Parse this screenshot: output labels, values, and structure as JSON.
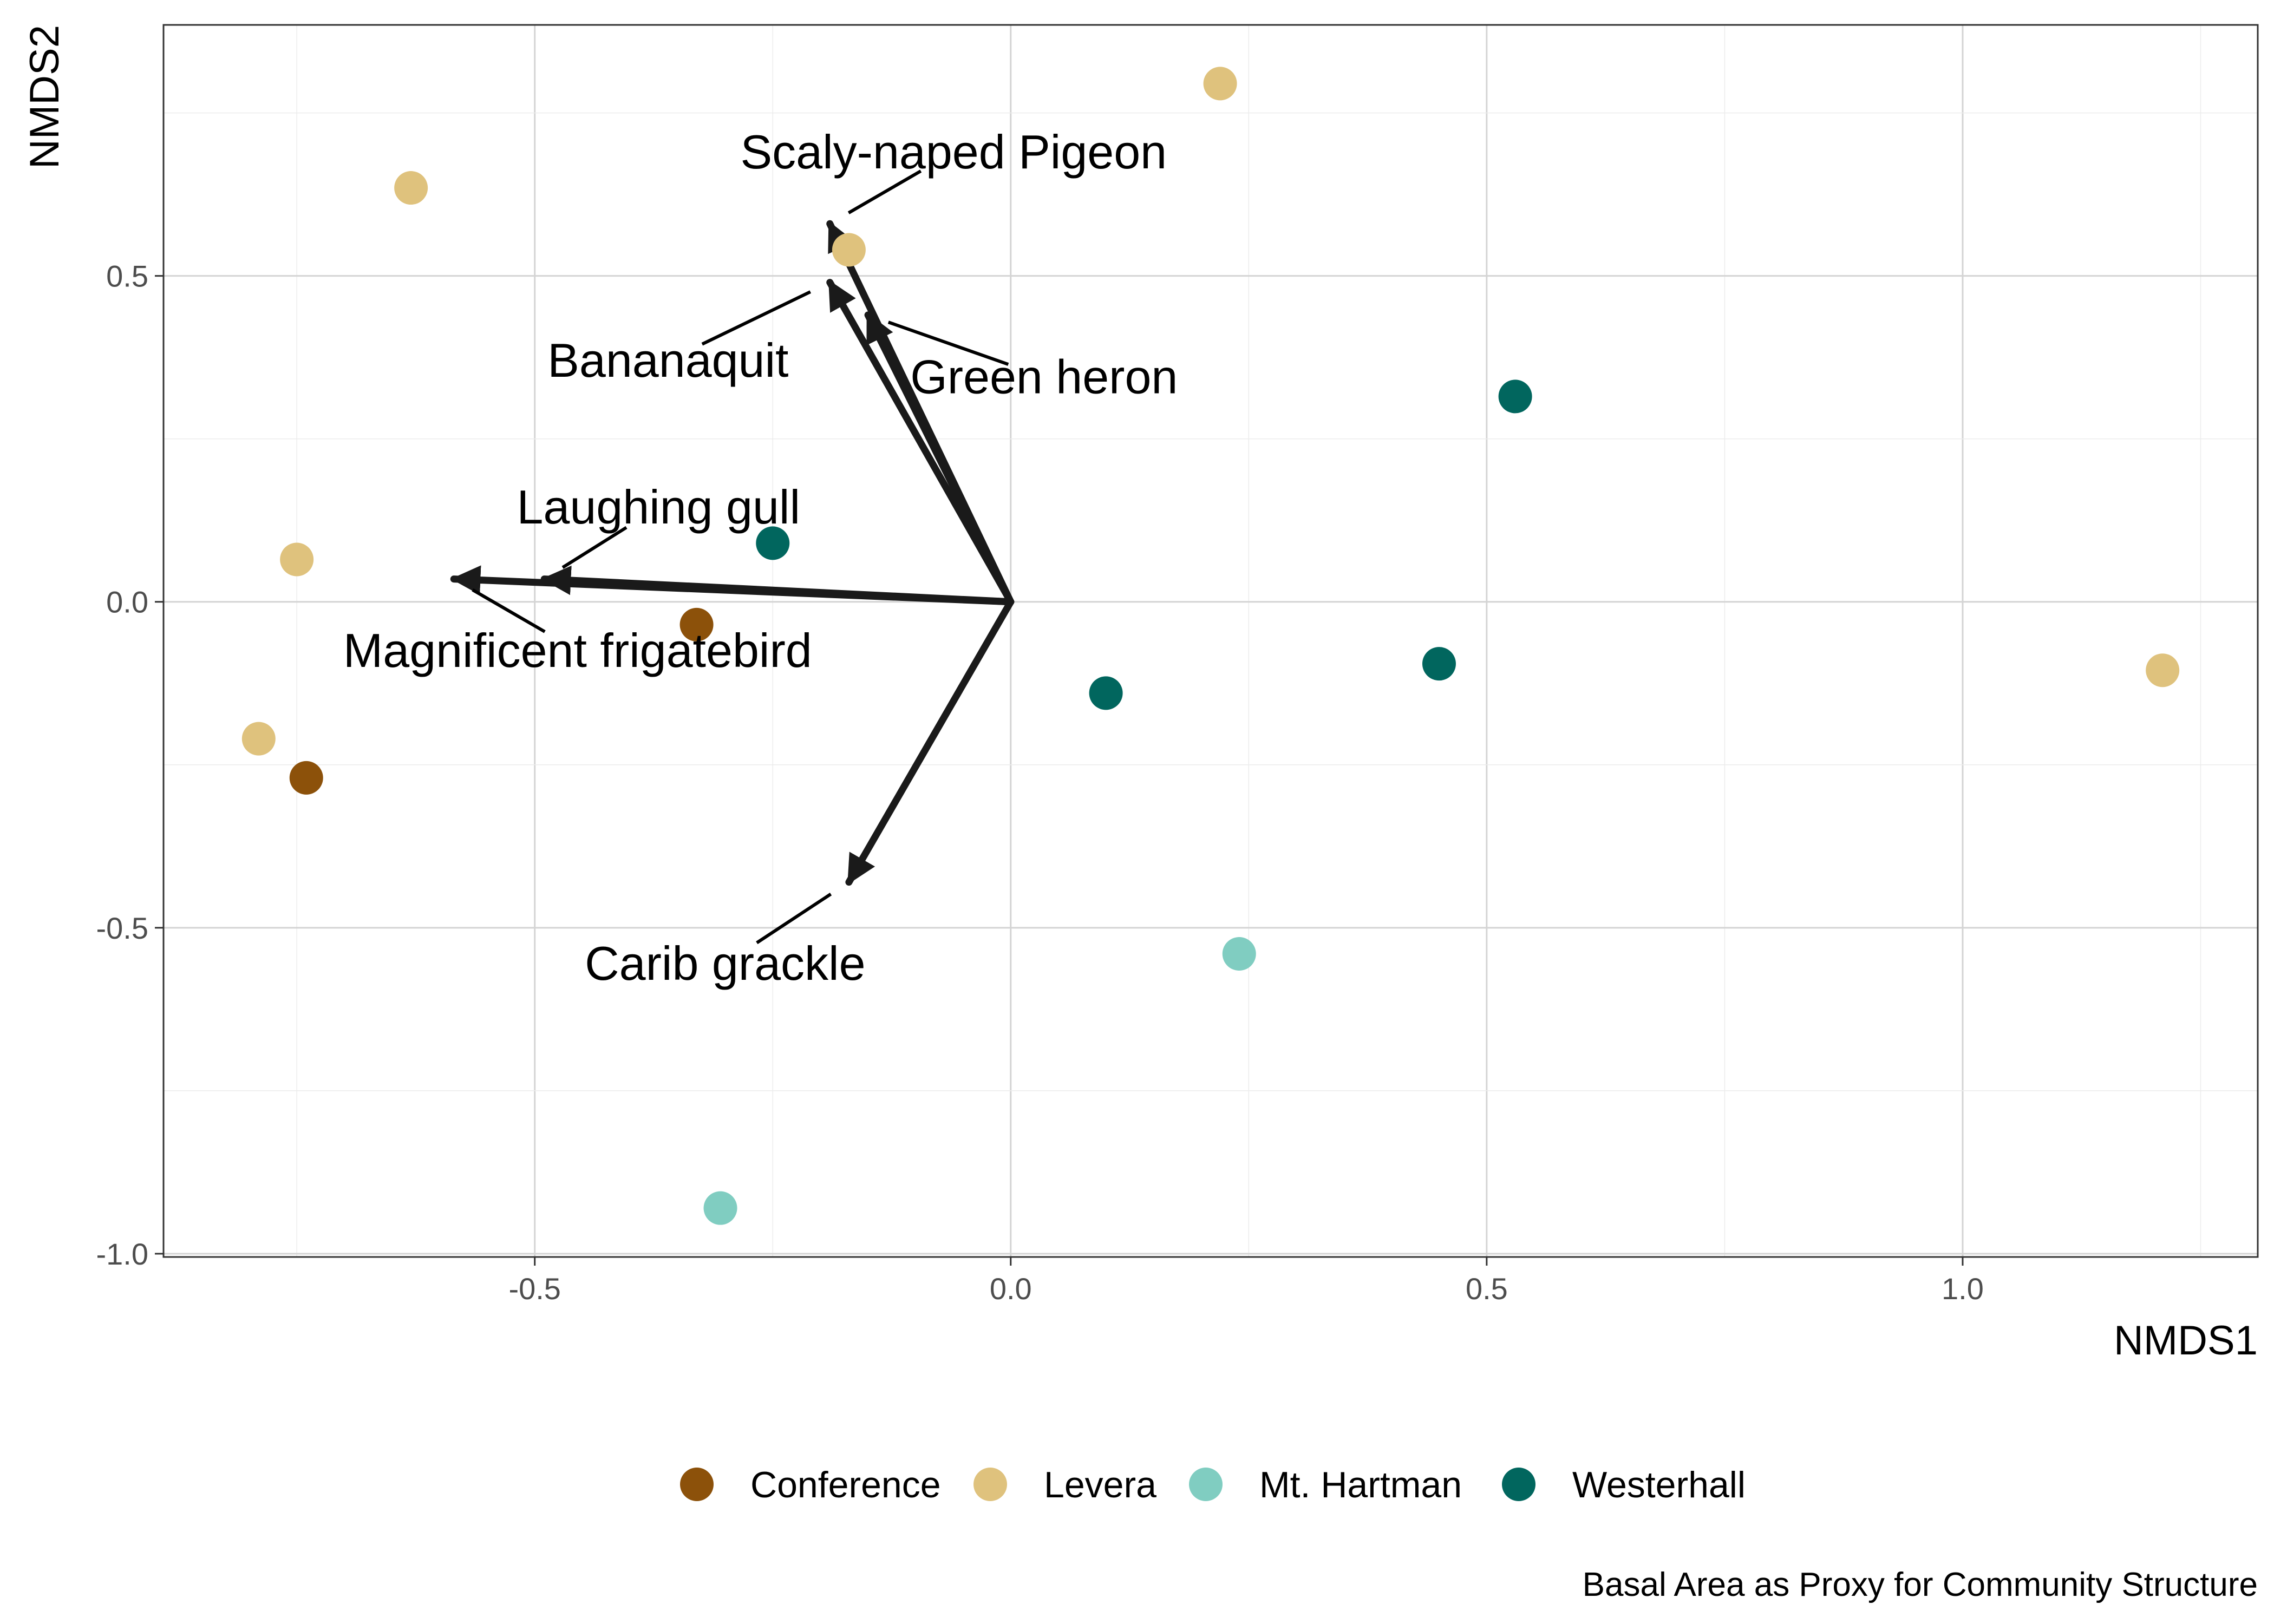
{
  "chart_data": {
    "type": "scatter",
    "title": "",
    "caption": "Basal Area as Proxy for Community Structure",
    "xlabel": "NMDS1",
    "ylabel": "NMDS2",
    "xlim": [
      -0.89,
      1.31
    ],
    "ylim": [
      -1.005,
      0.885
    ],
    "x_ticks": [
      -0.5,
      0.0,
      0.5,
      1.0
    ],
    "x_tick_labels": [
      "-0.5",
      "0.0",
      "0.5",
      "1.0"
    ],
    "y_ticks": [
      -1.0,
      -0.5,
      0.0,
      0.5
    ],
    "y_tick_labels": [
      "-1.0",
      "-0.5",
      "0.0",
      "0.5"
    ],
    "grid": true,
    "legend_position": "bottom",
    "series": [
      {
        "name": "Conference",
        "color": "#8C510A",
        "points": [
          {
            "x": -0.33,
            "y": -0.035
          },
          {
            "x": -0.74,
            "y": -0.27
          }
        ]
      },
      {
        "name": "Levera",
        "color": "#DFC27D",
        "points": [
          {
            "x": -0.63,
            "y": 0.635
          },
          {
            "x": 0.22,
            "y": 0.795
          },
          {
            "x": -0.75,
            "y": 0.065
          },
          {
            "x": -0.79,
            "y": -0.21
          },
          {
            "x": 1.21,
            "y": -0.105
          },
          {
            "x": -0.17,
            "y": 0.54
          }
        ]
      },
      {
        "name": "Mt. Hartman",
        "color": "#80CDC1",
        "points": [
          {
            "x": 0.24,
            "y": -0.54
          },
          {
            "x": -0.305,
            "y": -0.93
          }
        ]
      },
      {
        "name": "Westerhall",
        "color": "#01665E",
        "points": [
          {
            "x": 0.53,
            "y": 0.315
          },
          {
            "x": -0.25,
            "y": 0.09
          },
          {
            "x": 0.45,
            "y": -0.095
          },
          {
            "x": 0.1,
            "y": -0.14
          }
        ]
      }
    ],
    "vectors": [
      {
        "name": "Scaly-naped Pigeon",
        "x": -0.19,
        "y": 0.58,
        "label_x": -0.06,
        "label_y": 0.69
      },
      {
        "name": "Bananaquit",
        "x": -0.19,
        "y": 0.49,
        "label_x": -0.36,
        "label_y": 0.37
      },
      {
        "name": "Green heron",
        "x": -0.15,
        "y": 0.44,
        "label_x": 0.035,
        "label_y": 0.345
      },
      {
        "name": "Laughing gull",
        "x": -0.49,
        "y": 0.035,
        "label_x": -0.37,
        "label_y": 0.145
      },
      {
        "name": "Magnificent frigatebird",
        "x": -0.585,
        "y": 0.035,
        "label_x": -0.455,
        "label_y": -0.075
      },
      {
        "name": "Carib grackle",
        "x": -0.17,
        "y": -0.43,
        "label_x": -0.3,
        "label_y": -0.555
      }
    ]
  }
}
